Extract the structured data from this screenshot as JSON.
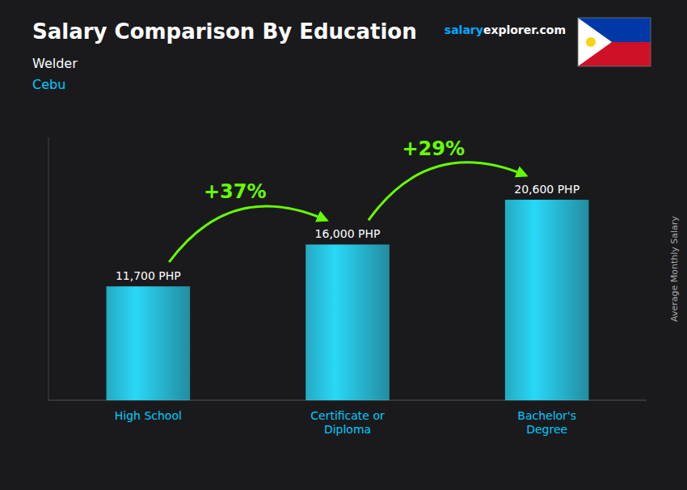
{
  "chart_data": {
    "type": "bar",
    "title": "Salary Comparison By Education",
    "subtitle": "Welder",
    "location": "Cebu",
    "watermark": [
      "salary",
      "explorer",
      ".com"
    ],
    "ylabel": "Average Monthly Salary",
    "categories": [
      "High School",
      "Certificate or\nDiploma",
      "Bachelor's\nDegree"
    ],
    "values": [
      11700,
      16000,
      20600
    ],
    "value_labels": [
      "11,700 PHP",
      "16,000 PHP",
      "20,600 PHP"
    ],
    "data_labels": true,
    "color": "#29d8f8",
    "annotations": [
      {
        "text": "+37%",
        "color": "#66ff00"
      },
      {
        "text": "+29%",
        "color": "#66ff00"
      }
    ],
    "ylim": [
      0,
      27000
    ],
    "yticks": [],
    "tick_labels": "x"
  }
}
